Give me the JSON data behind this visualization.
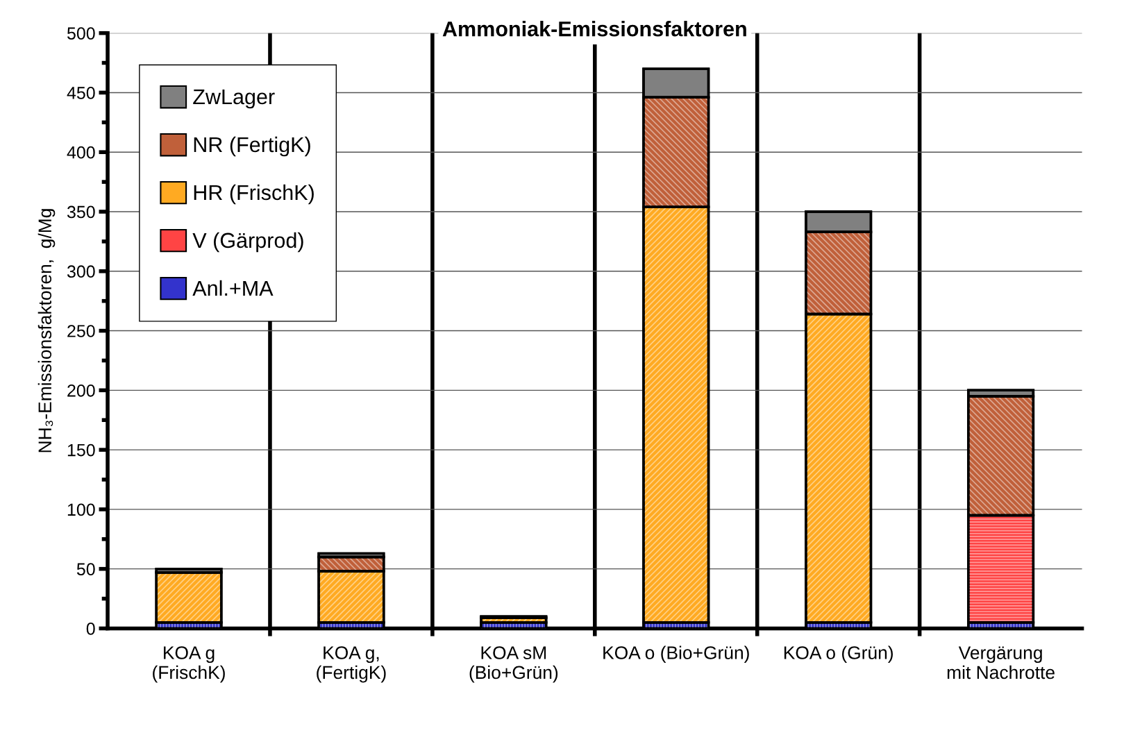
{
  "chart_data": {
    "type": "bar",
    "stacked": true,
    "title": "Ammoniak-Emissionsfaktoren",
    "ylabel": "NH₃-Emissionsfaktoren,  g/Mg",
    "categories": [
      "KOA g\n(FrischK)",
      "KOA g,\n(FertigK)",
      "KOA sM\n(Bio+Grün)",
      "KOA o (Bio+Grün)",
      "KOA o (Grün)",
      "Vergärung\nmit Nachrotte"
    ],
    "series": [
      {
        "name": "Anl.+MA",
        "color": "#3333cc",
        "values": [
          5,
          5,
          5,
          5,
          5,
          5
        ]
      },
      {
        "name": "V (Gärprod)",
        "color": "#ff4444",
        "values": [
          null,
          null,
          null,
          null,
          null,
          90
        ]
      },
      {
        "name": "HR (FrischK)",
        "color": "#ffaa22",
        "values": [
          42,
          43,
          4,
          349,
          259,
          null
        ]
      },
      {
        "name": "NR (FertigK)",
        "color": "#c0603a",
        "values": [
          null,
          12,
          null,
          92,
          69,
          100
        ]
      },
      {
        "name": "ZwLager",
        "color": "#808080",
        "values": [
          3,
          3,
          1,
          24,
          17,
          5
        ]
      }
    ],
    "ylim": [
      0,
      500
    ],
    "yticks": [
      0,
      50,
      100,
      150,
      200,
      250,
      300,
      350,
      400,
      450,
      500
    ],
    "grid": "y",
    "legend": "top left"
  }
}
